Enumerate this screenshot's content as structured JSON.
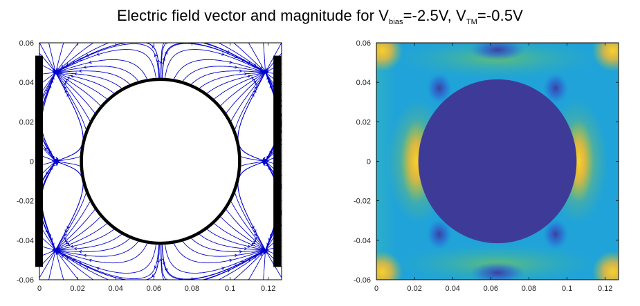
{
  "title": {
    "main": "Electric field vector and magnitude for V",
    "sub1": "bias",
    "mid": "=-2.5V, V",
    "sub2": "TM",
    "end": "=-0.5V"
  },
  "chart_data": [
    {
      "type": "streamline",
      "xlim": [
        0,
        0.127
      ],
      "ylim": [
        -0.06,
        0.06
      ],
      "xticks": [
        0,
        0.02,
        0.04,
        0.06,
        0.08,
        0.1,
        0.12
      ],
      "yticks": [
        -0.06,
        -0.04,
        -0.02,
        0,
        0.02,
        0.04,
        0.06
      ],
      "xtick_labels": [
        "0",
        "0.02",
        "0.04",
        "0.06",
        "0.08",
        "0.1",
        "0.12"
      ],
      "ytick_labels": [
        "-0.06",
        "-0.04",
        "-0.02",
        "0",
        "0.02",
        "0.04",
        "0.06"
      ],
      "circle": {
        "cx": 0.0635,
        "cy": 0.0,
        "r": 0.0415
      },
      "electrodes": [
        {
          "x": [
            -0.0022,
            0.0018
          ],
          "y": [
            -0.0535,
            0.0535
          ]
        },
        {
          "x": [
            0.1227,
            0.1267
          ],
          "y": [
            -0.0535,
            0.0535
          ]
        }
      ],
      "line_color": "#0000cc",
      "grid": false
    },
    {
      "type": "heatmap",
      "xlim": [
        0,
        0.127
      ],
      "ylim": [
        -0.06,
        0.06
      ],
      "xticks": [
        0,
        0.02,
        0.04,
        0.06,
        0.08,
        0.1,
        0.12
      ],
      "yticks": [
        -0.06,
        -0.04,
        -0.02,
        0,
        0.02,
        0.04,
        0.06
      ],
      "xtick_labels": [
        "0",
        "0.02",
        "0.04",
        "0.06",
        "0.08",
        "0.1",
        "0.12"
      ],
      "ytick_labels": [
        "-0.06",
        "-0.04",
        "-0.02",
        "0",
        "0.02",
        "0.04",
        "0.06"
      ],
      "circle": {
        "cx": 0.0635,
        "cy": 0.0,
        "r": 0.0415
      },
      "colormap": "parula",
      "interior_color": "#3e3b98",
      "grid": false
    }
  ]
}
